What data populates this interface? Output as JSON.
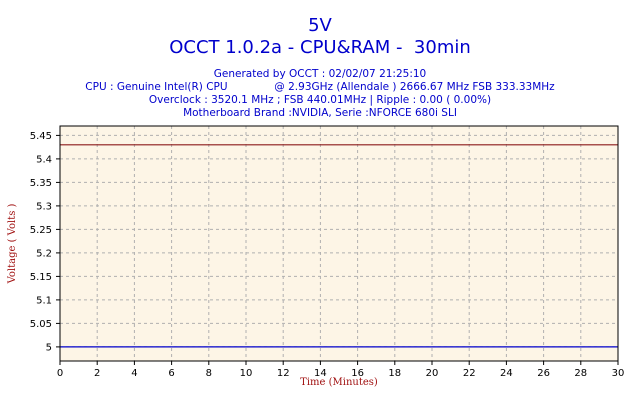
{
  "header": {
    "title": "5V",
    "subtitle": "OCCT 1.0.2a - CPU&RAM -  30min",
    "generated": "Generated by OCCT : 02/02/07 21:25:10",
    "cpu": "CPU : Genuine Intel(R) CPU              @ 2.93GHz (Allendale ) 2666.67 MHz FSB 333.33MHz",
    "overclock": "Overclock : 3520.1 MHz ; FSB 440.01MHz | Ripple : 0.00 ( 0.00%)",
    "motherboard": "Motherboard Brand :NVIDIA, Serie :NFORCE 680i SLI"
  },
  "colors": {
    "plot_background": "#fdf5e6",
    "frame": "#000000",
    "grid": "#b0b0b0",
    "title": "#0000cc",
    "axis_label": "#a01010",
    "line_top": "#8b1a1a",
    "line_bottom": "#0000cc"
  },
  "chart_data": {
    "type": "line",
    "xlabel": "Time (Minutes)",
    "ylabel": "Voltage ( Volts )",
    "xlim": [
      0,
      30
    ],
    "ylim": [
      4.97,
      5.47
    ],
    "x_ticks": [
      "0",
      "2",
      "4",
      "6",
      "8",
      "10",
      "12",
      "14",
      "16",
      "18",
      "20",
      "22",
      "24",
      "26",
      "28",
      "30"
    ],
    "y_ticks": [
      "5",
      "5.05",
      "5.1",
      "5.15",
      "5.2",
      "5.25",
      "5.3",
      "5.35",
      "5.4",
      "5.45"
    ],
    "grid": true,
    "series": [
      {
        "x": [
          0,
          30
        ],
        "values": [
          5.43,
          5.43
        ],
        "color": "#8b1a1a"
      },
      {
        "x": [
          0,
          30
        ],
        "values": [
          5.0,
          5.0
        ],
        "color": "#0000cc"
      }
    ]
  }
}
